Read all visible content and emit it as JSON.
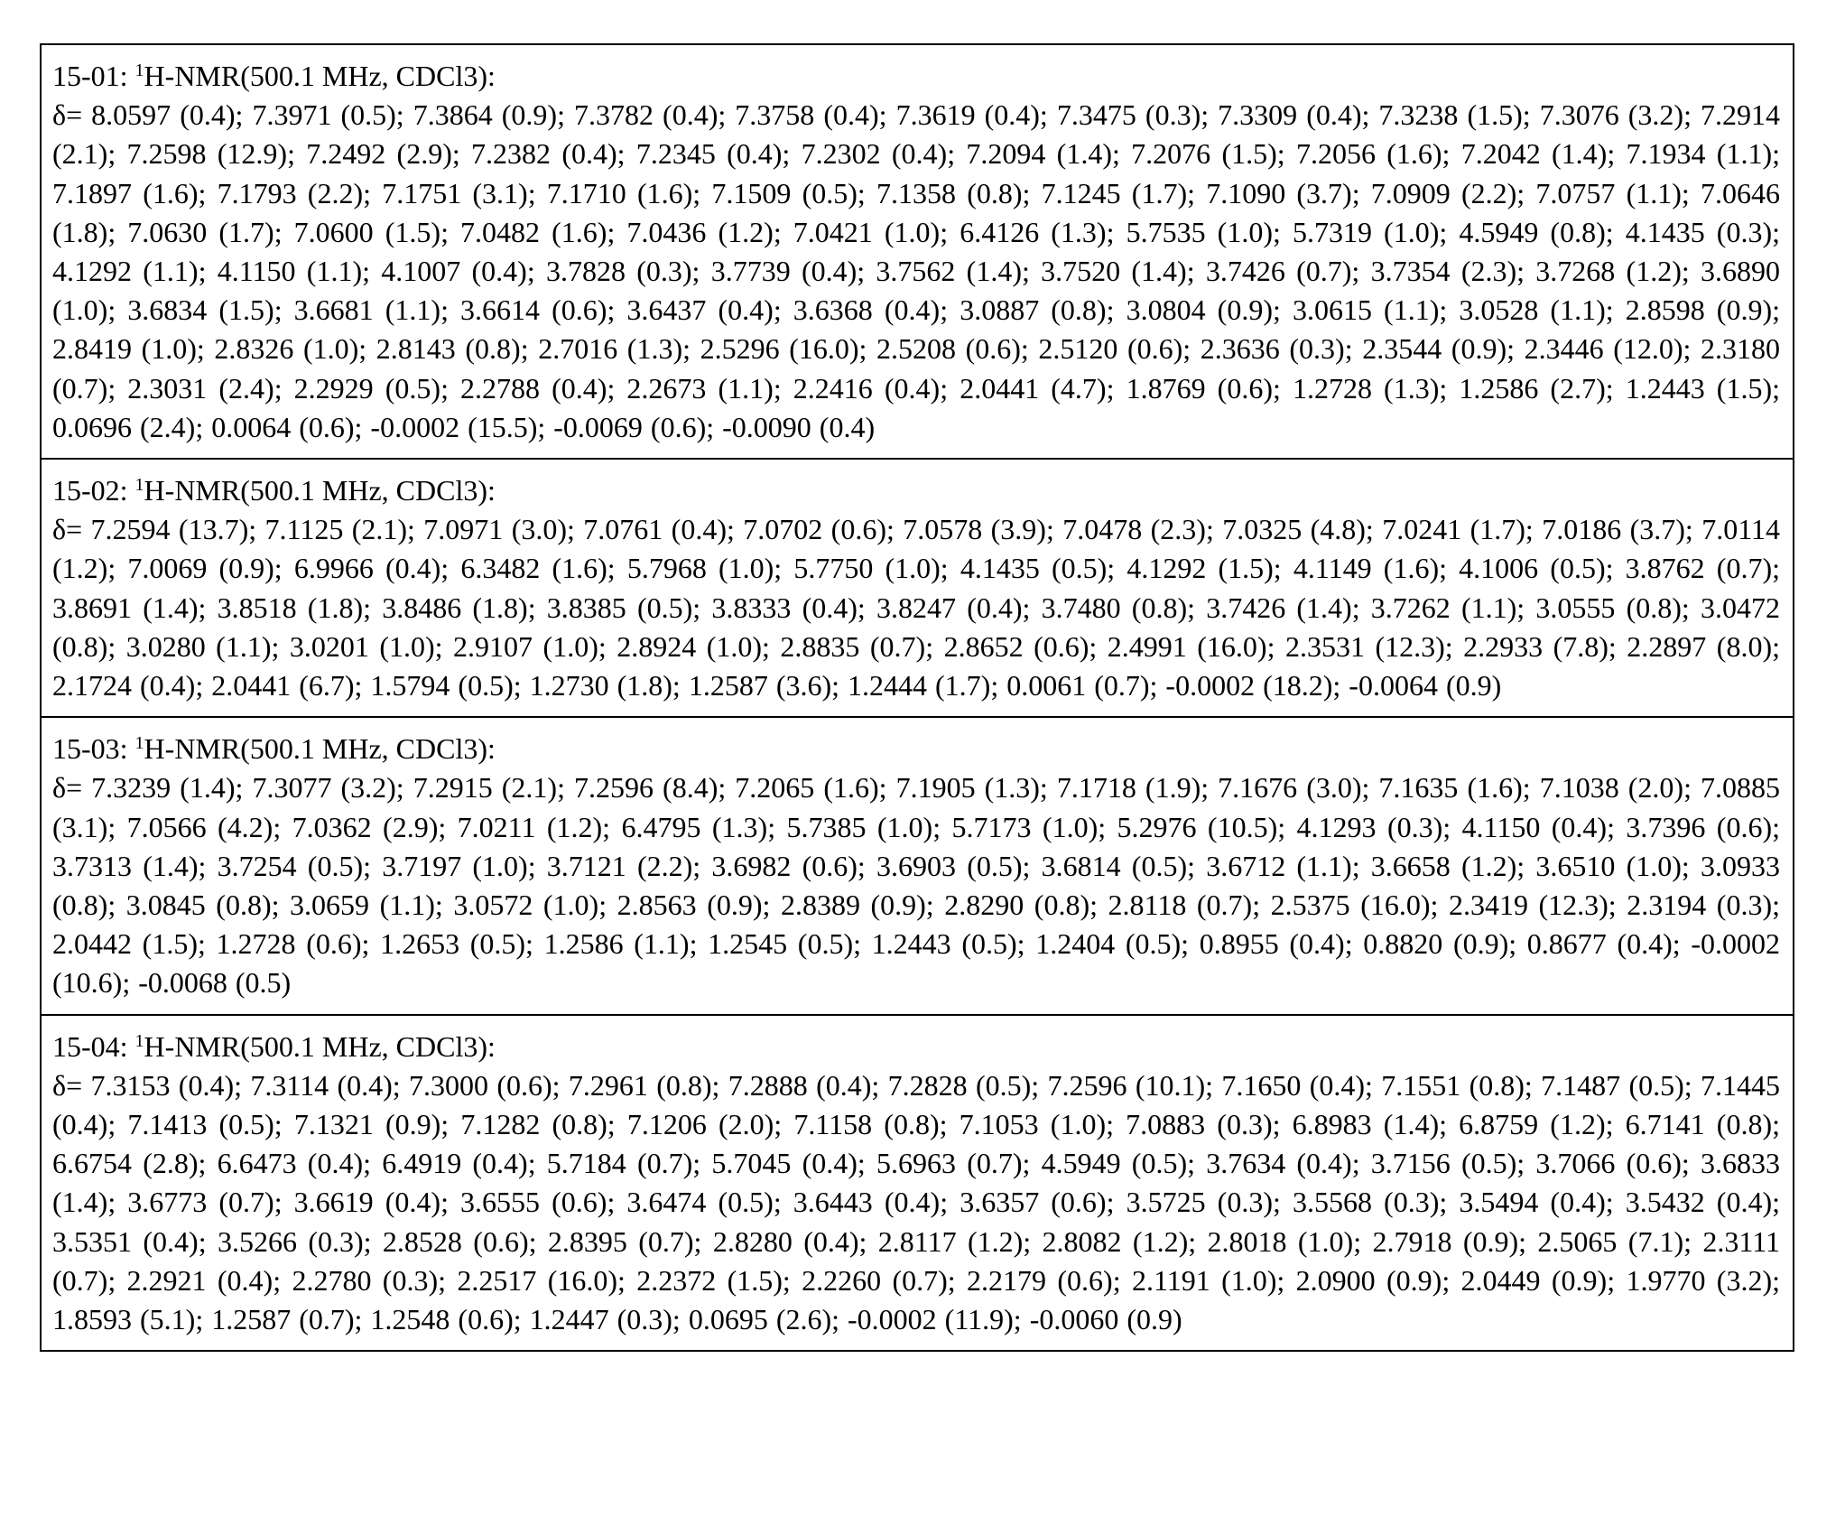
{
  "table": {
    "entries": [
      {
        "id": "15-01",
        "isotope": "1",
        "header_rest": "H-NMR(500.1 MHz, CDCl3):",
        "shifts": "δ= 8.0597 (0.4); 7.3971 (0.5); 7.3864 (0.9); 7.3782 (0.4); 7.3758 (0.4); 7.3619 (0.4); 7.3475 (0.3); 7.3309 (0.4); 7.3238 (1.5); 7.3076 (3.2); 7.2914 (2.1); 7.2598 (12.9); 7.2492 (2.9); 7.2382 (0.4); 7.2345 (0.4); 7.2302 (0.4); 7.2094 (1.4); 7.2076 (1.5); 7.2056 (1.6); 7.2042 (1.4); 7.1934 (1.1); 7.1897 (1.6); 7.1793 (2.2); 7.1751 (3.1); 7.1710 (1.6); 7.1509 (0.5); 7.1358 (0.8); 7.1245 (1.7); 7.1090 (3.7); 7.0909 (2.2); 7.0757 (1.1); 7.0646 (1.8); 7.0630 (1.7); 7.0600 (1.5); 7.0482 (1.6); 7.0436 (1.2); 7.0421 (1.0); 6.4126 (1.3); 5.7535 (1.0); 5.7319 (1.0); 4.5949 (0.8); 4.1435 (0.3); 4.1292 (1.1); 4.1150 (1.1); 4.1007 (0.4); 3.7828 (0.3); 3.7739 (0.4); 3.7562 (1.4); 3.7520 (1.4); 3.7426 (0.7); 3.7354 (2.3); 3.7268 (1.2); 3.6890 (1.0); 3.6834 (1.5); 3.6681 (1.1); 3.6614 (0.6); 3.6437 (0.4); 3.6368 (0.4); 3.0887 (0.8); 3.0804 (0.9); 3.0615 (1.1); 3.0528 (1.1); 2.8598 (0.9); 2.8419 (1.0); 2.8326 (1.0); 2.8143 (0.8); 2.7016 (1.3); 2.5296 (16.0); 2.5208 (0.6); 2.5120 (0.6); 2.3636 (0.3); 2.3544 (0.9); 2.3446 (12.0); 2.3180 (0.7); 2.3031 (2.4); 2.2929 (0.5); 2.2788 (0.4); 2.2673 (1.1); 2.2416 (0.4); 2.0441 (4.7); 1.8769 (0.6); 1.2728 (1.3); 1.2586 (2.7); 1.2443 (1.5); 0.0696 (2.4); 0.0064 (0.6); -0.0002 (15.5); -0.0069 (0.6); -0.0090 (0.4)"
      },
      {
        "id": "15-02",
        "isotope": "1",
        "header_rest": "H-NMR(500.1 MHz, CDCl3):",
        "shifts": "δ= 7.2594 (13.7); 7.1125 (2.1); 7.0971 (3.0); 7.0761 (0.4); 7.0702 (0.6); 7.0578 (3.9); 7.0478 (2.3); 7.0325 (4.8); 7.0241 (1.7); 7.0186 (3.7); 7.0114 (1.2); 7.0069 (0.9); 6.9966 (0.4); 6.3482 (1.6); 5.7968 (1.0); 5.7750 (1.0); 4.1435 (0.5); 4.1292 (1.5); 4.1149 (1.6); 4.1006 (0.5); 3.8762 (0.7); 3.8691 (1.4); 3.8518 (1.8); 3.8486 (1.8); 3.8385 (0.5); 3.8333 (0.4); 3.8247 (0.4); 3.7480 (0.8); 3.7426 (1.4); 3.7262 (1.1); 3.0555 (0.8); 3.0472 (0.8); 3.0280 (1.1); 3.0201 (1.0); 2.9107 (1.0); 2.8924 (1.0); 2.8835 (0.7); 2.8652 (0.6); 2.4991 (16.0); 2.3531 (12.3); 2.2933 (7.8); 2.2897 (8.0); 2.1724 (0.4); 2.0441 (6.7); 1.5794 (0.5); 1.2730 (1.8); 1.2587 (3.6); 1.2444 (1.7); 0.0061 (0.7); -0.0002 (18.2); -0.0064 (0.9)"
      },
      {
        "id": "15-03",
        "isotope": "1",
        "header_rest": "H-NMR(500.1 MHz, CDCl3):",
        "shifts": "δ= 7.3239 (1.4); 7.3077 (3.2); 7.2915 (2.1); 7.2596 (8.4); 7.2065 (1.6); 7.1905 (1.3); 7.1718 (1.9); 7.1676 (3.0); 7.1635 (1.6); 7.1038 (2.0); 7.0885 (3.1); 7.0566 (4.2); 7.0362 (2.9); 7.0211 (1.2); 6.4795 (1.3); 5.7385 (1.0); 5.7173 (1.0); 5.2976 (10.5); 4.1293 (0.3); 4.1150 (0.4); 3.7396 (0.6); 3.7313 (1.4); 3.7254 (0.5); 3.7197 (1.0); 3.7121 (2.2); 3.6982 (0.6); 3.6903 (0.5); 3.6814 (0.5); 3.6712 (1.1); 3.6658 (1.2); 3.6510 (1.0); 3.0933 (0.8); 3.0845 (0.8); 3.0659 (1.1); 3.0572 (1.0); 2.8563 (0.9); 2.8389 (0.9); 2.8290 (0.8); 2.8118 (0.7); 2.5375 (16.0); 2.3419 (12.3); 2.3194 (0.3); 2.0442 (1.5); 1.2728 (0.6); 1.2653 (0.5); 1.2586 (1.1); 1.2545 (0.5); 1.2443 (0.5); 1.2404 (0.5); 0.8955 (0.4); 0.8820 (0.9); 0.8677 (0.4); -0.0002 (10.6); -0.0068 (0.5)"
      },
      {
        "id": "15-04",
        "isotope": "1",
        "header_rest": "H-NMR(500.1 MHz, CDCl3):",
        "shifts": "δ= 7.3153 (0.4); 7.3114 (0.4); 7.3000 (0.6); 7.2961 (0.8); 7.2888 (0.4); 7.2828 (0.5); 7.2596 (10.1); 7.1650 (0.4); 7.1551 (0.8); 7.1487 (0.5); 7.1445 (0.4); 7.1413 (0.5); 7.1321 (0.9); 7.1282 (0.8); 7.1206 (2.0); 7.1158 (0.8); 7.1053 (1.0); 7.0883 (0.3); 6.8983 (1.4); 6.8759 (1.2); 6.7141 (0.8); 6.6754 (2.8); 6.6473 (0.4); 6.4919 (0.4); 5.7184 (0.7); 5.7045 (0.4); 5.6963 (0.7); 4.5949 (0.5); 3.7634 (0.4); 3.7156 (0.5); 3.7066 (0.6); 3.6833 (1.4); 3.6773 (0.7); 3.6619 (0.4); 3.6555 (0.6); 3.6474 (0.5); 3.6443 (0.4); 3.6357 (0.6); 3.5725 (0.3); 3.5568 (0.3); 3.5494 (0.4); 3.5432 (0.4); 3.5351 (0.4); 3.5266 (0.3); 2.8528 (0.6); 2.8395 (0.7); 2.8280 (0.4); 2.8117 (1.2); 2.8082 (1.2); 2.8018 (1.0); 2.7918 (0.9); 2.5065 (7.1); 2.3111 (0.7); 2.2921 (0.4); 2.2780 (0.3); 2.2517 (16.0); 2.2372 (1.5); 2.2260 (0.7); 2.2179 (0.6); 2.1191 (1.0); 2.0900 (0.9); 2.0449 (0.9); 1.9770 (3.2); 1.8593 (5.1); 1.2587 (0.7); 1.2548 (0.6); 1.2447 (0.3); 0.0695 (2.6); -0.0002 (11.9); -0.0060 (0.9)"
      }
    ]
  }
}
